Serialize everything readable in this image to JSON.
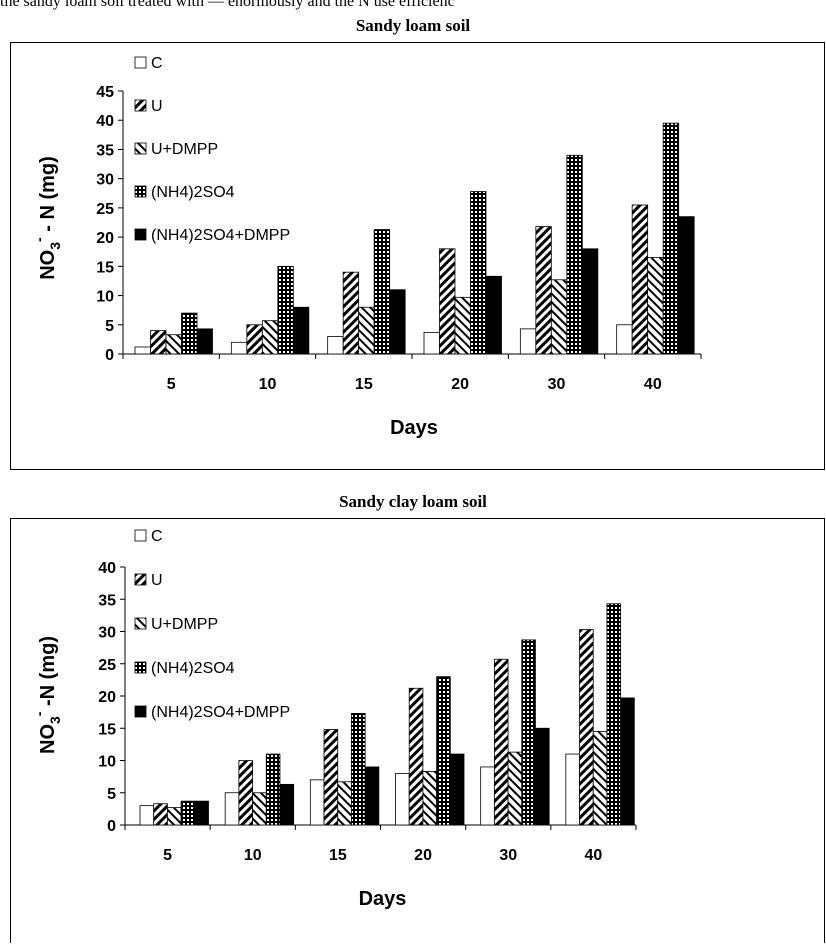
{
  "header_fragment": "the  sandy  loam  soil  treated  with  —  enormously and the N use efficienc",
  "chart_data": [
    {
      "type": "bar",
      "title": "Sandy loam soil",
      "xlabel": "Days",
      "ylabel": "NO3- - N (mg)",
      "ylabel_parts": {
        "a": "NO",
        "sub": "3",
        "sup": "-",
        "b": " - N (mg)"
      },
      "categories": [
        "5",
        "10",
        "15",
        "20",
        "30",
        "40"
      ],
      "ylim": [
        0,
        45
      ],
      "yticks": [
        "0",
        "5",
        "10",
        "15",
        "20",
        "25",
        "30",
        "35",
        "40",
        "45"
      ],
      "legend_position": "top-left",
      "series": [
        {
          "name": "C",
          "values": [
            1.2,
            2.0,
            3.0,
            3.7,
            4.3,
            5.0
          ]
        },
        {
          "name": "U",
          "values": [
            4.0,
            5.0,
            14.0,
            18.0,
            21.8,
            25.5
          ]
        },
        {
          "name": "U+DMPP",
          "values": [
            3.3,
            5.7,
            8.0,
            9.7,
            12.7,
            16.5
          ]
        },
        {
          "name": "(NH4)2SO4",
          "values": [
            7.0,
            15.0,
            21.3,
            27.8,
            34.0,
            39.5
          ]
        },
        {
          "name": "(NH4)2SO4+DMPP",
          "values": [
            4.3,
            8.0,
            11.0,
            13.3,
            18.0,
            23.5
          ]
        }
      ]
    },
    {
      "type": "bar",
      "title": "Sandy clay loam soil",
      "xlabel": "Days",
      "ylabel": "NO3- -N (mg)",
      "ylabel_parts": {
        "a": "NO",
        "sub": "3",
        "sup": "-",
        "b": " -N (mg)"
      },
      "categories": [
        "5",
        "10",
        "15",
        "20",
        "30",
        "40"
      ],
      "ylim": [
        0,
        40
      ],
      "yticks": [
        "0",
        "5",
        "10",
        "15",
        "20",
        "25",
        "30",
        "35",
        "40"
      ],
      "legend_position": "top-left",
      "series": [
        {
          "name": "C",
          "values": [
            3.0,
            5.0,
            7.0,
            8.0,
            9.0,
            11.0
          ]
        },
        {
          "name": "U",
          "values": [
            3.3,
            10.0,
            14.8,
            21.2,
            25.7,
            30.3
          ]
        },
        {
          "name": "U+DMPP",
          "values": [
            2.7,
            5.0,
            6.7,
            8.3,
            11.3,
            14.5
          ]
        },
        {
          "name": "(NH4)2SO4",
          "values": [
            3.7,
            11.0,
            17.3,
            23.0,
            28.7,
            34.3
          ]
        },
        {
          "name": "(NH4)2SO4+DMPP",
          "values": [
            3.7,
            6.3,
            9.0,
            11.0,
            15.0,
            19.7
          ]
        }
      ]
    }
  ]
}
